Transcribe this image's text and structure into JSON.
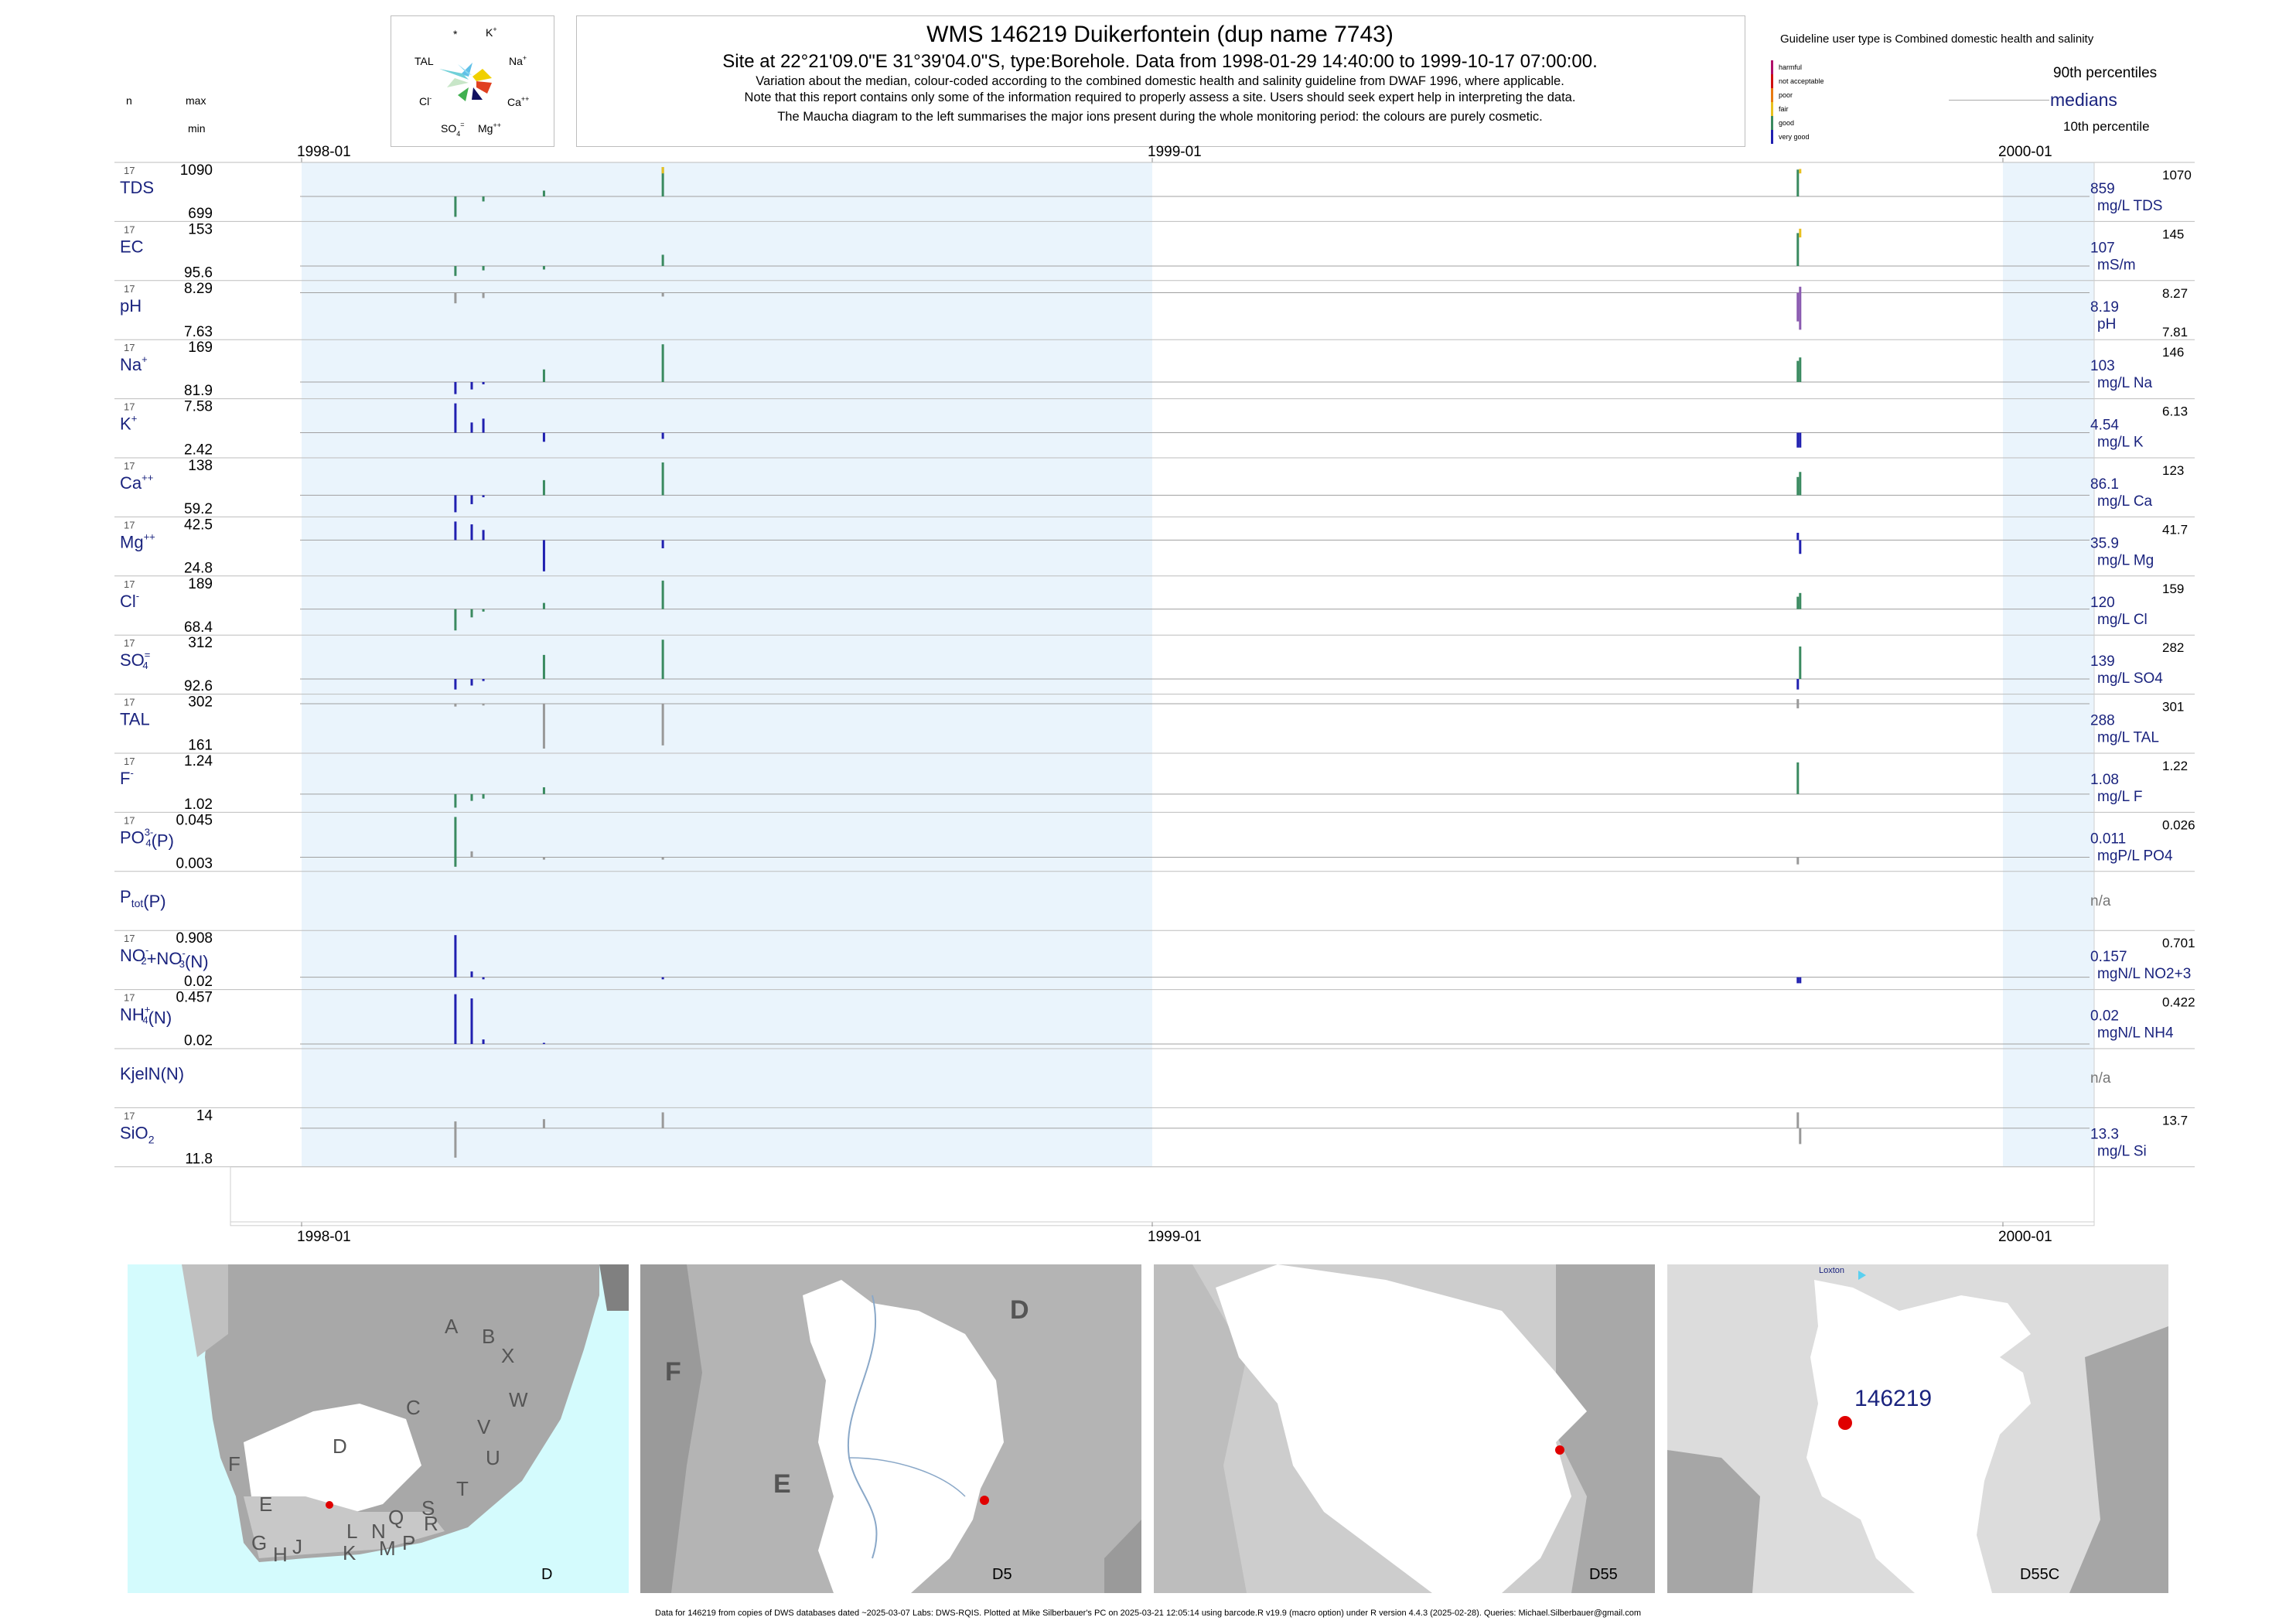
{
  "header": {
    "title": "WMS 146219  Duikerfontein (dup name 7743)",
    "subtitle": "Site at 22°21'09.0\"E 31°39'04.0\"S, type:Borehole.  Data from 1998-01-29 14:40:00 to 1999-10-17 07:00:00.",
    "desc1": "Variation about the median,  colour-coded according to the combined domestic health and salinity guideline from DWAF 1996, where applicable.",
    "desc2": "Note that this report contains only some of the information required to properly assess a site. Users should seek expert help in interpreting the data.",
    "desc3": "The Maucha diagram to the left summarises the major ions present during the whole monitoring period: the colours are purely cosmetic.",
    "col_n": "n",
    "col_max": "max",
    "col_min": "min"
  },
  "maucha": {
    "star": "*",
    "k": "K",
    "k_sup": "+",
    "tal": "TAL",
    "na": "Na",
    "na_sup": "+",
    "cl": "Cl",
    "cl_sup": "-",
    "ca": "Ca",
    "ca_sup": "++",
    "so4": "SO",
    "so4_sub": "4",
    "so4_sup": "=",
    "mg": "Mg",
    "mg_sup": "++"
  },
  "legend": {
    "guideline": "Guideline user type is Combined domestic health and salinity",
    "p90": "90th percentiles",
    "medians": "medians",
    "p10": "10th percentile",
    "classes": [
      {
        "label": "harmful",
        "color": "#b0106a"
      },
      {
        "label": "not acceptable",
        "color": "#d01010"
      },
      {
        "label": "poor",
        "color": "#e87a10"
      },
      {
        "label": "fair",
        "color": "#e8c020"
      },
      {
        "label": "good",
        "color": "#3a8a60"
      },
      {
        "label": "very good",
        "color": "#2020b0"
      }
    ]
  },
  "chart_data": {
    "type": "bar",
    "x_ticks": [
      "1998-01",
      "1999-01",
      "2000-01"
    ],
    "shaded_year": "1998",
    "panels": [
      {
        "name": "TDS",
        "n": "17",
        "max": "1090",
        "min": "699",
        "median": "859",
        "p90": "1070",
        "unit": "mg/L TDS",
        "samples": [
          {
            "date": "1998-03-08",
            "lo": 699,
            "hi": 859,
            "color": "#3a8a60"
          },
          {
            "date": "1998-03-20",
            "lo": 820,
            "hi": 859,
            "color": "#3a8a60"
          },
          {
            "date": "1998-04-15",
            "lo": 859,
            "hi": 905,
            "color": "#3a8a60"
          },
          {
            "date": "1998-06-05",
            "lo": 859,
            "hi": 1090,
            "color": "#3a8a60"
          },
          {
            "date": "1998-06-05",
            "lo": 1040,
            "hi": 1090,
            "color": "#e8c020"
          },
          {
            "date": "1999-10-05",
            "lo": 859,
            "hi": 1070,
            "color": "#3a8a60"
          },
          {
            "date": "1999-10-06",
            "lo": 1040,
            "hi": 1075,
            "color": "#e8c020"
          }
        ]
      },
      {
        "name": "EC",
        "n": "17",
        "max": "153",
        "min": "95.6",
        "median": "107",
        "p90": "145",
        "unit": "mS/m",
        "samples": [
          {
            "date": "1998-03-08",
            "lo": 95.6,
            "hi": 107,
            "color": "#3a8a60"
          },
          {
            "date": "1998-03-20",
            "lo": 102,
            "hi": 107,
            "color": "#3a8a60"
          },
          {
            "date": "1998-04-15",
            "lo": 103,
            "hi": 107,
            "color": "#3a8a60"
          },
          {
            "date": "1998-06-05",
            "lo": 107,
            "hi": 120,
            "color": "#3a8a60"
          },
          {
            "date": "1999-10-05",
            "lo": 107,
            "hi": 145,
            "color": "#3a8a60"
          },
          {
            "date": "1999-10-06",
            "lo": 140,
            "hi": 150,
            "color": "#e8c020"
          }
        ]
      },
      {
        "name": "pH",
        "n": "17",
        "max": "8.29",
        "min": "7.63",
        "median": "8.19",
        "p90": "8.27",
        "p10": "7.81",
        "unit": "pH",
        "samples": [
          {
            "date": "1998-03-08",
            "lo": 8.05,
            "hi": 8.19,
            "color": "#999999"
          },
          {
            "date": "1998-03-20",
            "lo": 8.12,
            "hi": 8.19,
            "color": "#999999"
          },
          {
            "date": "1998-06-05",
            "lo": 8.14,
            "hi": 8.19,
            "color": "#999999"
          },
          {
            "date": "1999-10-05",
            "lo": 7.81,
            "hi": 8.19,
            "color": "#8a5ab0"
          },
          {
            "date": "1999-10-06",
            "lo": 7.7,
            "hi": 8.27,
            "color": "#8a5ab0"
          }
        ]
      },
      {
        "name": "Na",
        "sup": "+",
        "n": "17",
        "max": "169",
        "min": "81.9",
        "median": "103",
        "p90": "146",
        "unit": "mg/L Na",
        "samples": [
          {
            "date": "1998-03-08",
            "lo": 81.9,
            "hi": 103,
            "color": "#2020b0"
          },
          {
            "date": "1998-03-15",
            "lo": 90,
            "hi": 103,
            "color": "#2020b0"
          },
          {
            "date": "1998-03-20",
            "lo": 99,
            "hi": 103,
            "color": "#2020b0"
          },
          {
            "date": "1998-04-15",
            "lo": 103,
            "hi": 125,
            "color": "#3a8a60"
          },
          {
            "date": "1998-06-05",
            "lo": 103,
            "hi": 169,
            "color": "#3a8a60"
          },
          {
            "date": "1999-10-05",
            "lo": 103,
            "hi": 140,
            "color": "#3a8a60"
          },
          {
            "date": "1999-10-06",
            "lo": 103,
            "hi": 146,
            "color": "#3a8a60"
          }
        ]
      },
      {
        "name": "K",
        "sup": "+",
        "n": "17",
        "max": "7.58",
        "min": "2.42",
        "median": "4.54",
        "p90": "6.13",
        "unit": "mg/L K",
        "samples": [
          {
            "date": "1998-03-08",
            "lo": 4.54,
            "hi": 7.58,
            "color": "#2020b0"
          },
          {
            "date": "1998-03-15",
            "lo": 4.54,
            "hi": 5.6,
            "color": "#2020b0"
          },
          {
            "date": "1998-03-20",
            "lo": 4.54,
            "hi": 6.0,
            "color": "#2020b0"
          },
          {
            "date": "1998-04-15",
            "lo": 3.6,
            "hi": 4.54,
            "color": "#2020b0"
          },
          {
            "date": "1998-06-05",
            "lo": 3.9,
            "hi": 4.54,
            "color": "#2020b0"
          },
          {
            "date": "1999-10-05",
            "lo": 3.0,
            "hi": 4.54,
            "color": "#2020b0"
          },
          {
            "date": "1999-10-06",
            "lo": 3.0,
            "hi": 4.54,
            "color": "#2020b0"
          }
        ]
      },
      {
        "name": "Ca",
        "sup": "++",
        "n": "17",
        "max": "138",
        "min": "59.2",
        "median": "86.1",
        "p90": "123",
        "unit": "mg/L Ca",
        "samples": [
          {
            "date": "1998-03-08",
            "lo": 59.2,
            "hi": 86.1,
            "color": "#2020b0"
          },
          {
            "date": "1998-03-15",
            "lo": 72,
            "hi": 86.1,
            "color": "#2020b0"
          },
          {
            "date": "1998-03-20",
            "lo": 83,
            "hi": 86.1,
            "color": "#2020b0"
          },
          {
            "date": "1998-04-15",
            "lo": 86.1,
            "hi": 110,
            "color": "#3a8a60"
          },
          {
            "date": "1998-06-05",
            "lo": 86.1,
            "hi": 138,
            "color": "#3a8a60"
          },
          {
            "date": "1999-10-05",
            "lo": 86.1,
            "hi": 115,
            "color": "#3a8a60"
          },
          {
            "date": "1999-10-06",
            "lo": 86.1,
            "hi": 123,
            "color": "#3a8a60"
          }
        ]
      },
      {
        "name": "Mg",
        "sup": "++",
        "n": "17",
        "max": "42.5",
        "min": "24.8",
        "median": "35.9",
        "p90": "41.7",
        "unit": "mg/L Mg",
        "samples": [
          {
            "date": "1998-03-08",
            "lo": 35.9,
            "hi": 42.5,
            "color": "#2020b0"
          },
          {
            "date": "1998-03-15",
            "lo": 35.9,
            "hi": 41.5,
            "color": "#2020b0"
          },
          {
            "date": "1998-03-20",
            "lo": 35.9,
            "hi": 39.5,
            "color": "#2020b0"
          },
          {
            "date": "1998-04-15",
            "lo": 24.8,
            "hi": 35.9,
            "color": "#2020b0"
          },
          {
            "date": "1998-06-05",
            "lo": 33,
            "hi": 35.9,
            "color": "#2020b0"
          },
          {
            "date": "1999-10-05",
            "lo": 35.9,
            "hi": 38.5,
            "color": "#2020b0"
          },
          {
            "date": "1999-10-06",
            "lo": 31,
            "hi": 35.9,
            "color": "#2020b0"
          }
        ]
      },
      {
        "name": "Cl",
        "sup": "-",
        "n": "17",
        "max": "189",
        "min": "68.4",
        "median": "120",
        "p90": "159",
        "unit": "mg/L Cl",
        "samples": [
          {
            "date": "1998-03-08",
            "lo": 68.4,
            "hi": 120,
            "color": "#3a8a60"
          },
          {
            "date": "1998-03-15",
            "lo": 100,
            "hi": 120,
            "color": "#3a8a60"
          },
          {
            "date": "1998-03-20",
            "lo": 114,
            "hi": 120,
            "color": "#3a8a60"
          },
          {
            "date": "1998-04-15",
            "lo": 120,
            "hi": 135,
            "color": "#3a8a60"
          },
          {
            "date": "1998-06-05",
            "lo": 120,
            "hi": 189,
            "color": "#3a8a60"
          },
          {
            "date": "1999-10-05",
            "lo": 120,
            "hi": 150,
            "color": "#3a8a60"
          },
          {
            "date": "1999-10-06",
            "lo": 120,
            "hi": 159,
            "color": "#3a8a60"
          }
        ]
      },
      {
        "name": "SO",
        "sub": "4",
        "sup": "=",
        "n": "17",
        "max": "312",
        "min": "92.6",
        "median": "139",
        "p90": "282",
        "unit": "mg/L SO4",
        "samples": [
          {
            "date": "1998-03-08",
            "lo": 92.6,
            "hi": 139,
            "color": "#2020b0"
          },
          {
            "date": "1998-03-15",
            "lo": 110,
            "hi": 139,
            "color": "#2020b0"
          },
          {
            "date": "1998-03-20",
            "lo": 130,
            "hi": 139,
            "color": "#2020b0"
          },
          {
            "date": "1998-04-15",
            "lo": 139,
            "hi": 245,
            "color": "#3a8a60"
          },
          {
            "date": "1998-06-05",
            "lo": 139,
            "hi": 312,
            "color": "#3a8a60"
          },
          {
            "date": "1999-10-05",
            "lo": 92.6,
            "hi": 139,
            "color": "#2020b0"
          },
          {
            "date": "1999-10-06",
            "lo": 139,
            "hi": 282,
            "color": "#3a8a60"
          }
        ]
      },
      {
        "name": "TAL",
        "n": "17",
        "max": "302",
        "min": "161",
        "median": "288",
        "p90": "301",
        "unit": "mg/L TAL",
        "samples": [
          {
            "date": "1998-03-08",
            "lo": 280,
            "hi": 288,
            "color": "#999999"
          },
          {
            "date": "1998-03-20",
            "lo": 283,
            "hi": 288,
            "color": "#999999"
          },
          {
            "date": "1998-04-15",
            "lo": 161,
            "hi": 288,
            "color": "#999999"
          },
          {
            "date": "1998-06-05",
            "lo": 170,
            "hi": 288,
            "color": "#999999"
          },
          {
            "date": "1999-10-05",
            "lo": 275,
            "hi": 301,
            "color": "#999999"
          }
        ]
      },
      {
        "name": "F",
        "sup": "-",
        "n": "17",
        "max": "1.24",
        "min": "1.02",
        "median": "1.08",
        "p90": "1.22",
        "unit": "mg/L F",
        "samples": [
          {
            "date": "1998-03-08",
            "lo": 1.02,
            "hi": 1.08,
            "color": "#3a8a60"
          },
          {
            "date": "1998-03-15",
            "lo": 1.05,
            "hi": 1.08,
            "color": "#3a8a60"
          },
          {
            "date": "1998-03-20",
            "lo": 1.06,
            "hi": 1.08,
            "color": "#3a8a60"
          },
          {
            "date": "1998-04-15",
            "lo": 1.08,
            "hi": 1.11,
            "color": "#3a8a60"
          },
          {
            "date": "1999-10-05",
            "lo": 1.08,
            "hi": 1.22,
            "color": "#3a8a60"
          }
        ]
      },
      {
        "name": "PO",
        "sub": "4",
        "sup": "3-",
        "suffix": "(P)",
        "n": "17",
        "max": "0.045",
        "min": "0.003",
        "median": "0.011",
        "p90": "0.026",
        "unit": "mgP/L PO4",
        "samples": [
          {
            "date": "1998-03-08",
            "lo": 0.003,
            "hi": 0.045,
            "color": "#3a8a60"
          },
          {
            "date": "1998-03-15",
            "lo": 0.011,
            "hi": 0.016,
            "color": "#999999"
          },
          {
            "date": "1998-04-15",
            "lo": 0.009,
            "hi": 0.011,
            "color": "#999999"
          },
          {
            "date": "1998-06-05",
            "lo": 0.009,
            "hi": 0.011,
            "color": "#999999"
          },
          {
            "date": "1999-10-05",
            "lo": 0.005,
            "hi": 0.011,
            "color": "#999999"
          }
        ]
      },
      {
        "name": "P",
        "sub": "tot",
        "suffix": "(P)",
        "empty": true,
        "unit": "n/a"
      },
      {
        "name": "NO",
        "sub": "2",
        "sup": "-",
        "name2": "+NO",
        "sub2": "3",
        "sup2": "-",
        "suffix": "(N)",
        "n": "17",
        "max": "0.908",
        "min": "0.02",
        "median": "0.157",
        "p90": "0.701",
        "unit": "mgN/L NO2+3",
        "samples": [
          {
            "date": "1998-03-08",
            "lo": 0.157,
            "hi": 0.908,
            "color": "#2020b0"
          },
          {
            "date": "1998-03-15",
            "lo": 0.157,
            "hi": 0.26,
            "color": "#2020b0"
          },
          {
            "date": "1998-03-20",
            "lo": 0.12,
            "hi": 0.157,
            "color": "#2020b0"
          },
          {
            "date": "1998-06-05",
            "lo": 0.12,
            "hi": 0.157,
            "color": "#2020b0"
          },
          {
            "date": "1999-10-05",
            "lo": 0.05,
            "hi": 0.157,
            "color": "#2020b0"
          },
          {
            "date": "1999-10-06",
            "lo": 0.05,
            "hi": 0.157,
            "color": "#2020b0"
          }
        ]
      },
      {
        "name": "NH",
        "sub": "4",
        "sup": "+",
        "suffix": "(N)",
        "n": "17",
        "max": "0.457",
        "min": "0.02",
        "median": "0.02",
        "p90": "0.422",
        "unit": "mgN/L NH4",
        "samples": [
          {
            "date": "1998-03-08",
            "lo": 0.02,
            "hi": 0.457,
            "color": "#2020b0"
          },
          {
            "date": "1998-03-15",
            "lo": 0.02,
            "hi": 0.42,
            "color": "#2020b0"
          },
          {
            "date": "1998-03-20",
            "lo": 0.02,
            "hi": 0.06,
            "color": "#2020b0"
          },
          {
            "date": "1998-04-15",
            "lo": 0.02,
            "hi": 0.03,
            "color": "#2020b0"
          }
        ]
      },
      {
        "name": "KjelN(N)",
        "empty": true,
        "unit": "n/a"
      },
      {
        "name": "SiO",
        "sub": "2",
        "n": "17",
        "max": "14",
        "min": "11.8",
        "median": "13.3",
        "p90": "13.7",
        "unit": "mg/L Si",
        "samples": [
          {
            "date": "1998-03-08",
            "lo": 12.0,
            "hi": 13.6,
            "color": "#999999"
          },
          {
            "date": "1998-04-15",
            "lo": 13.3,
            "hi": 13.7,
            "color": "#999999"
          },
          {
            "date": "1998-06-05",
            "lo": 13.3,
            "hi": 14,
            "color": "#999999"
          },
          {
            "date": "1999-10-05",
            "lo": 13.3,
            "hi": 14,
            "color": "#999999"
          },
          {
            "date": "1999-10-06",
            "lo": 12.6,
            "hi": 13.3,
            "color": "#999999"
          }
        ]
      }
    ]
  },
  "maps": [
    {
      "caption": "D",
      "letters": [
        "A",
        "B",
        "X",
        "W",
        "C",
        "V",
        "U",
        "T",
        "S",
        "R",
        "D",
        "F",
        "E",
        "G",
        "H",
        "J",
        "L",
        "K",
        "N",
        "M",
        "P",
        "Q"
      ]
    },
    {
      "caption": "D5",
      "letters": [
        "D",
        "F",
        "E"
      ]
    },
    {
      "caption": "D55",
      "letters": []
    },
    {
      "caption": "D55C",
      "site": "146219",
      "town": "Loxton"
    }
  ],
  "footer": "Data for 146219 from copies of DWS databases dated ~2025-03-07 Labs: DWS-RQIS. Plotted at Mike Silberbauer's PC on 2025-03-21 12:05:14 using barcode.R v19.9 (macro option) under R version 4.4.3 (2025-02-28). Queries: Michael.Silberbauer@gmail.com"
}
